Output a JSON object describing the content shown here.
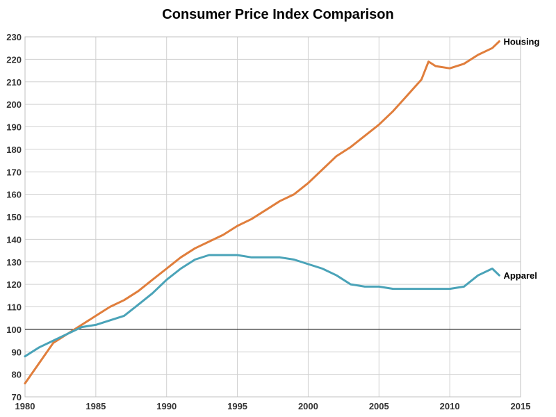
{
  "chart_data": {
    "type": "line",
    "title": "Consumer Price Index Comparison",
    "xlabel": "",
    "ylabel": "",
    "xlim": [
      1980,
      2015
    ],
    "ylim": [
      70,
      230
    ],
    "x_ticks": [
      1980,
      1985,
      1990,
      1995,
      2000,
      2005,
      2010,
      2015
    ],
    "y_ticks": [
      70,
      80,
      90,
      100,
      110,
      120,
      130,
      140,
      150,
      160,
      170,
      180,
      190,
      200,
      210,
      220,
      230
    ],
    "grid": true,
    "reference_line": {
      "y": 100
    },
    "series": [
      {
        "name": "Housing",
        "color": "#e07e3c",
        "x": [
          1980,
          1981,
          1982,
          1983,
          1984,
          1985,
          1986,
          1987,
          1988,
          1989,
          1990,
          1991,
          1992,
          1993,
          1994,
          1995,
          1996,
          1997,
          1998,
          1999,
          2000,
          2001,
          2002,
          2003,
          2004,
          2005,
          2006,
          2007,
          2008,
          2008.5,
          2009,
          2010,
          2011,
          2012,
          2013,
          2013.5
        ],
        "y": [
          76,
          85,
          94,
          98,
          102,
          106,
          110,
          113,
          117,
          122,
          127,
          132,
          136,
          139,
          142,
          146,
          149,
          153,
          157,
          160,
          165,
          171,
          177,
          181,
          186,
          191,
          197,
          204,
          211,
          219,
          217,
          216,
          218,
          222,
          225,
          228
        ]
      },
      {
        "name": "Apparel",
        "color": "#4aa3b8",
        "x": [
          1980,
          1981,
          1982,
          1983,
          1984,
          1985,
          1986,
          1987,
          1988,
          1989,
          1990,
          1991,
          1992,
          1993,
          1994,
          1995,
          1996,
          1997,
          1998,
          1999,
          2000,
          2001,
          2002,
          2003,
          2004,
          2005,
          2006,
          2007,
          2008,
          2009,
          2010,
          2011,
          2012,
          2013,
          2013.5
        ],
        "y": [
          88,
          92,
          95,
          98,
          101,
          102,
          104,
          106,
          111,
          116,
          122,
          127,
          131,
          133,
          133,
          133,
          132,
          132,
          132,
          131,
          129,
          127,
          124,
          120,
          119,
          119,
          118,
          118,
          118,
          118,
          118,
          119,
          124,
          127,
          124
        ]
      }
    ]
  }
}
